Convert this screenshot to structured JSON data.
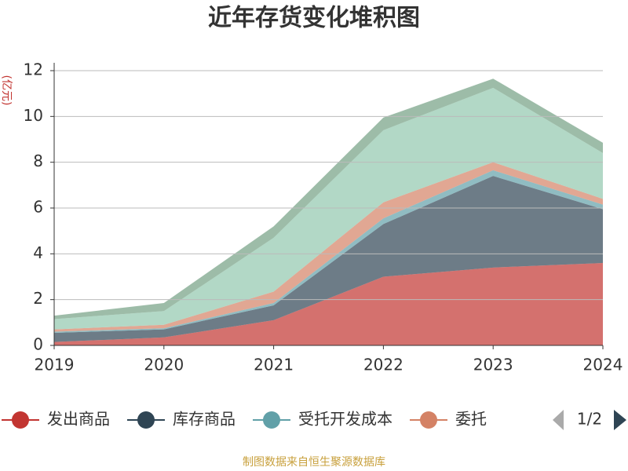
{
  "chart_data": {
    "type": "stacked-area",
    "title": "近年存货变化堆积图",
    "y_label": "(亿元)",
    "categories": [
      "2019",
      "2020",
      "2021",
      "2022",
      "2023",
      "2024"
    ],
    "series": [
      {
        "name": "发出商品",
        "color": "#c23531",
        "values": [
          0.15,
          0.35,
          1.1,
          3.0,
          3.4,
          3.6
        ]
      },
      {
        "name": "库存商品",
        "color": "#2f4554",
        "values": [
          0.4,
          0.35,
          0.65,
          2.3,
          4.0,
          2.35
        ]
      },
      {
        "name": "受托开发成本",
        "color": "#61a0a8",
        "values": [
          0.05,
          0.05,
          0.1,
          0.25,
          0.25,
          0.2
        ]
      },
      {
        "name": "委托",
        "color": "#d48265",
        "values": [
          0.1,
          0.15,
          0.5,
          0.7,
          0.35,
          0.25
        ]
      },
      {
        "color": "#91c7ae",
        "values": [
          0.45,
          0.6,
          2.35,
          3.15,
          3.25,
          2.0
        ]
      },
      {
        "color": "#749f83",
        "values": [
          0.15,
          0.35,
          0.5,
          0.55,
          0.4,
          0.45
        ]
      }
    ],
    "ylim": [
      0,
      12
    ],
    "yticks": [
      0,
      2,
      4,
      6,
      8,
      10,
      12
    ],
    "grid": true,
    "legend_page": "1/2",
    "source": "制图数据来自恒生聚源数据库"
  }
}
